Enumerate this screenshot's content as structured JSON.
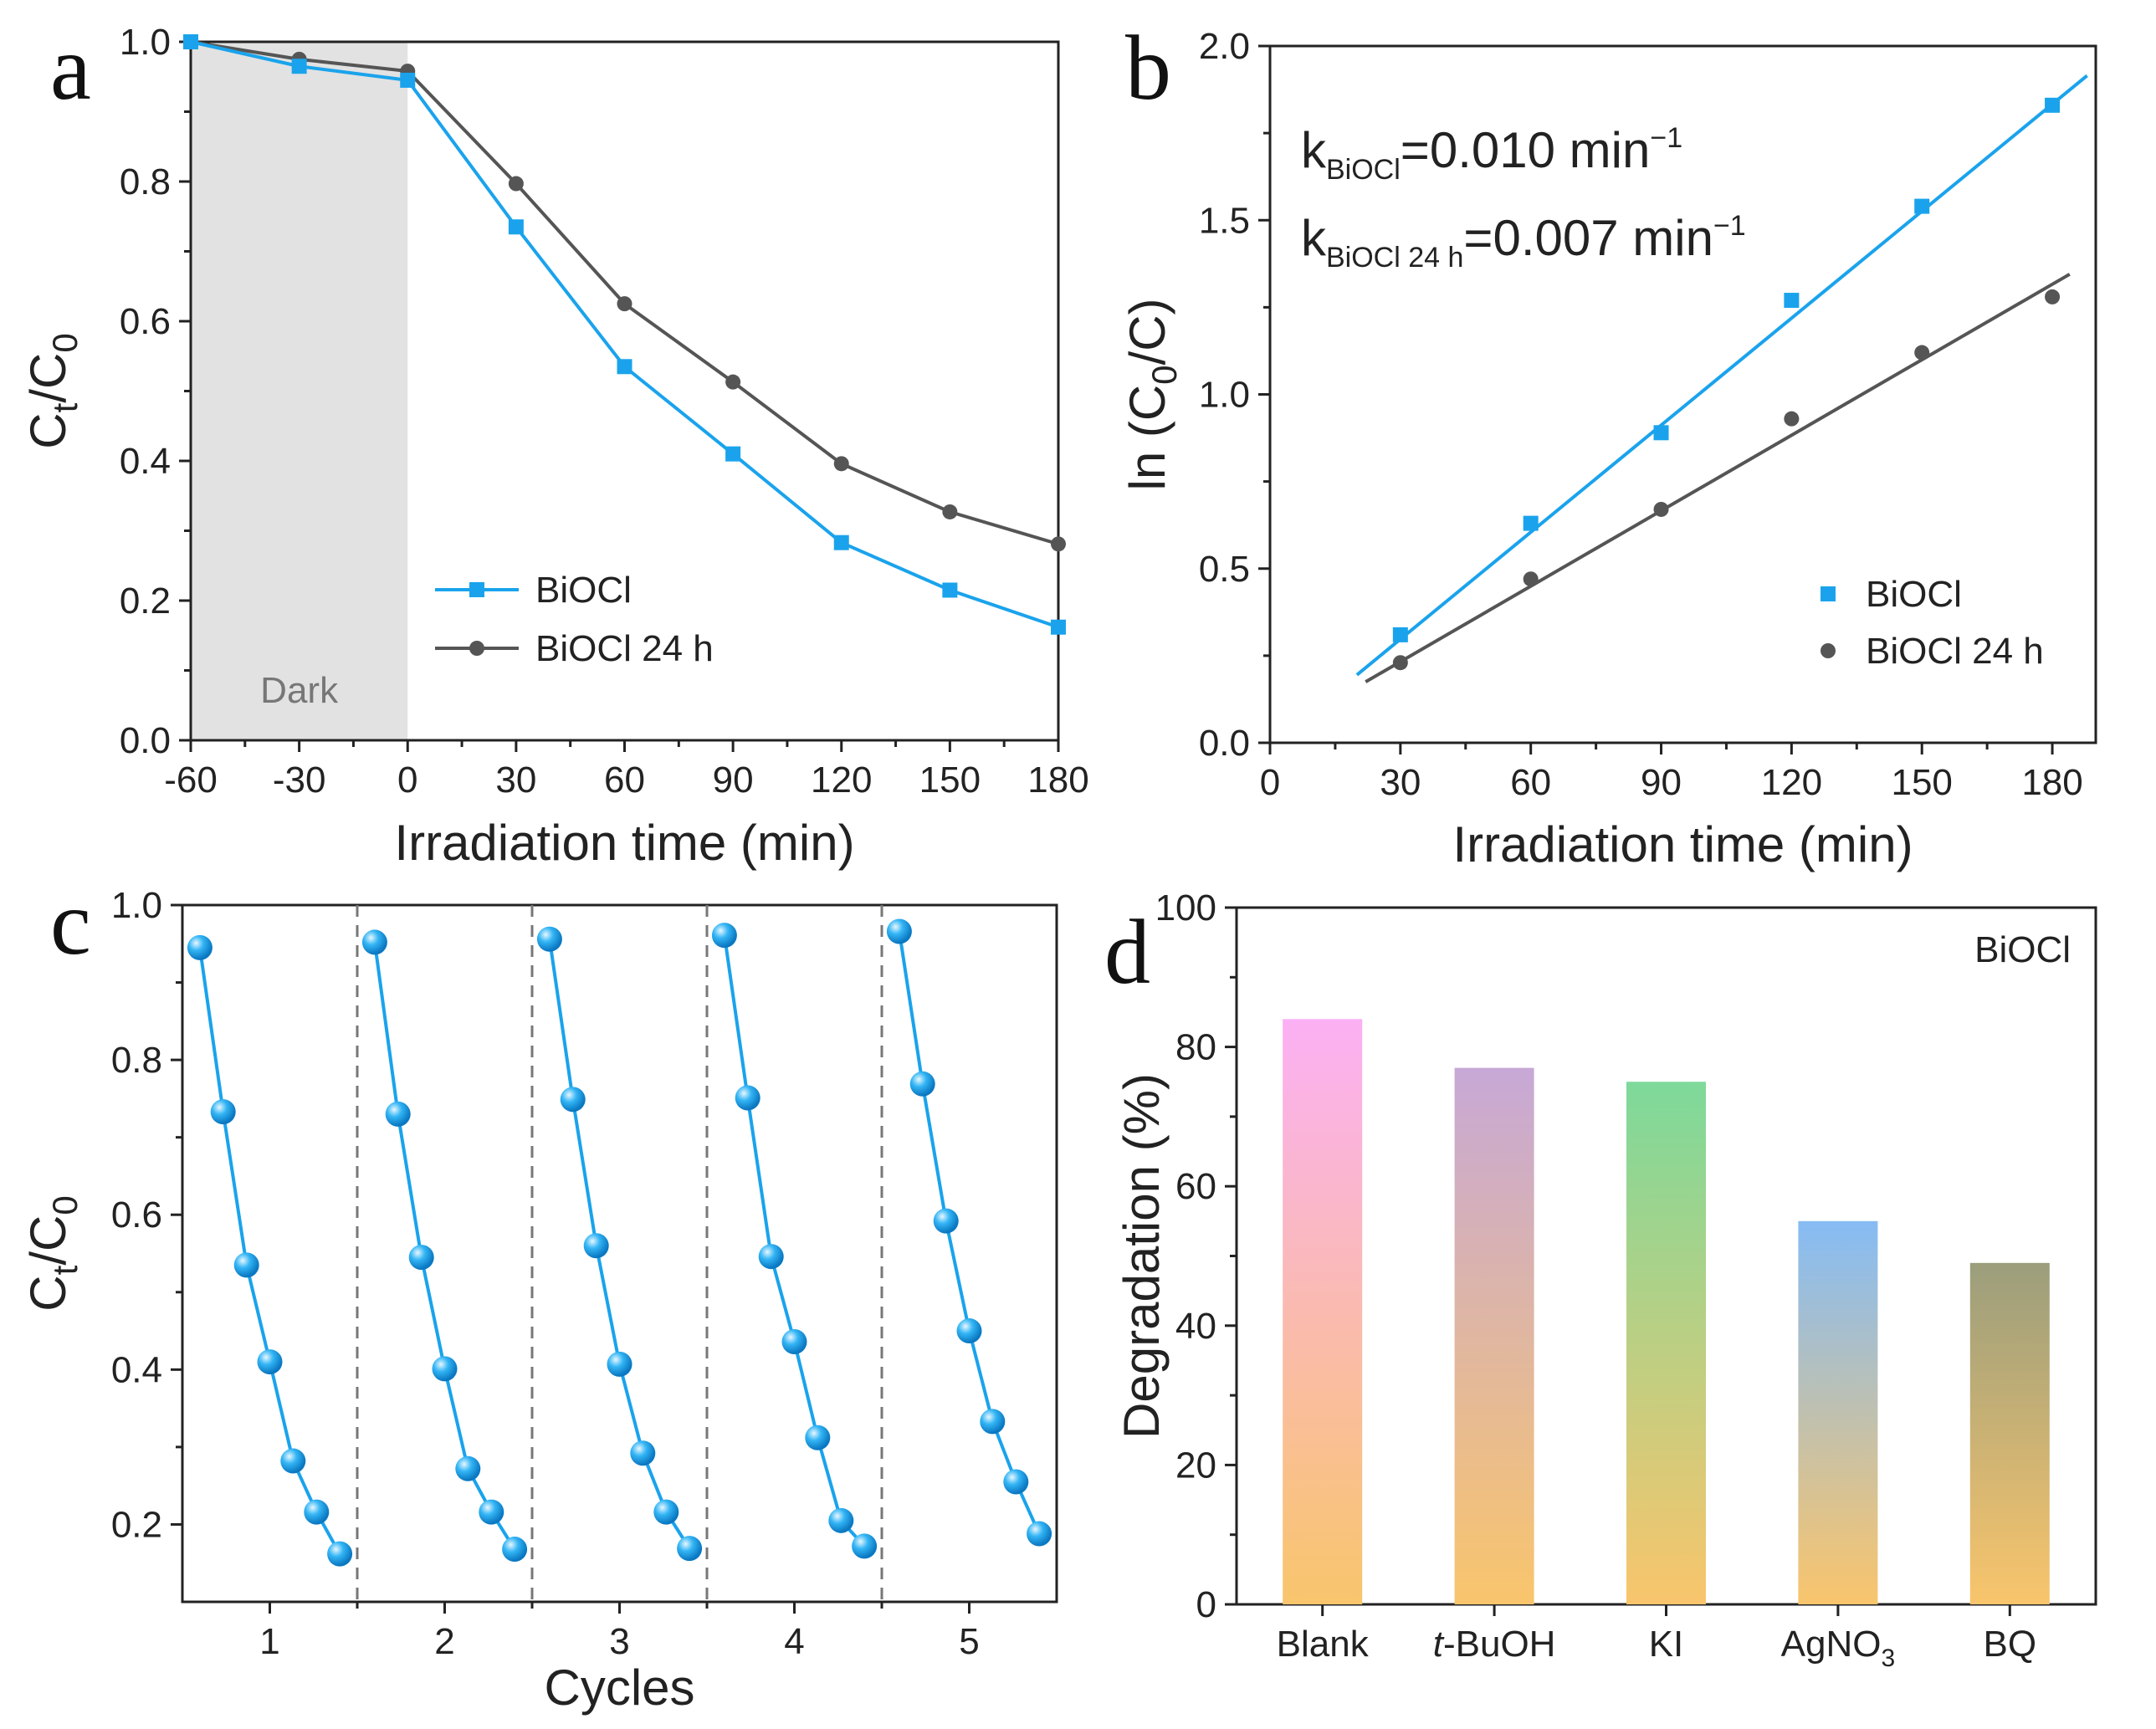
{
  "panel_letters": [
    "a",
    "b",
    "c",
    "d"
  ],
  "colors": {
    "biocl": "#1aa3ec",
    "biocl24": "#555555",
    "dark_region": "#e2e2e2",
    "axis": "#222222"
  },
  "chart_data": [
    {
      "panel": "a",
      "type": "line",
      "xlabel": "Irradiation time (min)",
      "ylabel_base": "C",
      "ylabel_sub1": "t",
      "ylabel_mid": "/C",
      "ylabel_sub2": "0",
      "xlim": [
        -60,
        180
      ],
      "ylim": [
        0,
        1.0
      ],
      "xticks": [
        -60,
        -30,
        0,
        30,
        60,
        90,
        120,
        150,
        180
      ],
      "yticks": [
        0.0,
        0.2,
        0.4,
        0.6,
        0.8,
        1.0
      ],
      "ytick_labels": [
        "0.0",
        "0.2",
        "0.4",
        "0.6",
        "0.8",
        "1.0"
      ],
      "shaded_region": {
        "x": [
          -60,
          0
        ],
        "label": "Dark"
      },
      "legend_position": "lower-center",
      "series": [
        {
          "name": "BiOCl",
          "marker": "square",
          "color": "#1aa3ec",
          "x": [
            -60,
            -30,
            0,
            30,
            60,
            90,
            120,
            150,
            180
          ],
          "y": [
            1.0,
            0.965,
            0.945,
            0.735,
            0.535,
            0.41,
            0.283,
            0.215,
            0.162
          ]
        },
        {
          "name": "BiOCl 24 h",
          "marker": "circle",
          "color": "#555555",
          "x": [
            -60,
            -30,
            0,
            30,
            60,
            90,
            120,
            150,
            180
          ],
          "y": [
            1.0,
            0.975,
            0.958,
            0.797,
            0.625,
            0.513,
            0.396,
            0.327,
            0.281
          ]
        }
      ]
    },
    {
      "panel": "b",
      "type": "scatter",
      "xlabel": "Irradiation time (min)",
      "ylabel_pre": "ln (C",
      "ylabel_sub": "0",
      "ylabel_post": "/C)",
      "xlim": [
        0,
        190
      ],
      "ylim": [
        0,
        2.0
      ],
      "xticks": [
        0,
        30,
        60,
        90,
        120,
        150,
        180
      ],
      "yticks": [
        0.0,
        0.5,
        1.0,
        1.5,
        2.0
      ],
      "ytick_labels": [
        "0.0",
        "0.5",
        "1.0",
        "1.5",
        "2.0"
      ],
      "legend_position": "lower-right",
      "annotations": [
        {
          "pre": "k",
          "sub": "BiOCl",
          "post": "=0.010 min",
          "sup": "−1"
        },
        {
          "pre": "k",
          "sub": "BiOCl 24 h",
          "post": "=0.007 min",
          "sup": "−1"
        }
      ],
      "series": [
        {
          "name": "BiOCl",
          "marker": "square",
          "color": "#1aa3ec",
          "x": [
            30,
            60,
            90,
            120,
            150,
            180
          ],
          "y": [
            0.31,
            0.63,
            0.89,
            1.27,
            1.54,
            1.83
          ],
          "fit": {
            "x": [
              20,
              188
            ],
            "y": [
              0.195,
              1.915
            ]
          }
        },
        {
          "name": "BiOCl 24 h",
          "marker": "circle",
          "color": "#555555",
          "x": [
            30,
            60,
            90,
            120,
            150,
            180
          ],
          "y": [
            0.23,
            0.47,
            0.67,
            0.93,
            1.12,
            1.28
          ],
          "fit": {
            "x": [
              22,
              184
            ],
            "y": [
              0.175,
              1.345
            ]
          }
        }
      ]
    },
    {
      "panel": "c",
      "type": "line",
      "xlabel": "Cycles",
      "ylabel_base": "C",
      "ylabel_sub1": "t",
      "ylabel_mid": "/C",
      "ylabel_sub2": "0",
      "xlim": [
        0.5,
        5.5
      ],
      "ylim": [
        0.1,
        1.0
      ],
      "xticks": [
        1,
        2,
        3,
        4,
        5
      ],
      "yticks": [
        0.2,
        0.4,
        0.6,
        0.8,
        1.0
      ],
      "ytick_labels": [
        "0.2",
        "0.4",
        "0.6",
        "0.8",
        "1.0"
      ],
      "separators": [
        1.5,
        2.5,
        3.5,
        4.5
      ],
      "series": [
        {
          "name": "1",
          "color": "#1aa3ec",
          "x": [
            0.6,
            0.733,
            0.867,
            1.0,
            1.133,
            1.267,
            1.4
          ],
          "y": [
            0.945,
            0.733,
            0.535,
            0.41,
            0.282,
            0.216,
            0.162
          ]
        },
        {
          "name": "2",
          "color": "#1aa3ec",
          "x": [
            1.6,
            1.733,
            1.867,
            2.0,
            2.133,
            2.267,
            2.4
          ],
          "y": [
            0.952,
            0.73,
            0.545,
            0.401,
            0.272,
            0.216,
            0.168
          ]
        },
        {
          "name": "3",
          "color": "#1aa3ec",
          "x": [
            2.6,
            2.733,
            2.867,
            3.0,
            3.133,
            3.267,
            3.4
          ],
          "y": [
            0.956,
            0.749,
            0.56,
            0.407,
            0.292,
            0.216,
            0.169
          ]
        },
        {
          "name": "4",
          "color": "#1aa3ec",
          "x": [
            3.6,
            3.733,
            3.867,
            4.0,
            4.133,
            4.267,
            4.4
          ],
          "y": [
            0.961,
            0.751,
            0.546,
            0.436,
            0.312,
            0.205,
            0.172
          ]
        },
        {
          "name": "5",
          "color": "#1aa3ec",
          "x": [
            4.6,
            4.733,
            4.867,
            5.0,
            5.133,
            5.267,
            5.4
          ],
          "y": [
            0.966,
            0.769,
            0.592,
            0.45,
            0.333,
            0.255,
            0.188
          ]
        }
      ]
    },
    {
      "panel": "d",
      "type": "bar",
      "ylabel": "Degradation (%)",
      "ylim": [
        0,
        100
      ],
      "yticks": [
        0,
        20,
        40,
        60,
        80,
        100
      ],
      "annotation": "BiOCl",
      "categories": [
        {
          "pre": "",
          "italic": "",
          "main": "Blank",
          "sub": ""
        },
        {
          "pre": "",
          "italic": "t",
          "main": "-BuOH",
          "sub": ""
        },
        {
          "pre": "",
          "italic": "",
          "main": "KI",
          "sub": ""
        },
        {
          "pre": "",
          "italic": "",
          "main": "AgNO",
          "sub": "3"
        },
        {
          "pre": "",
          "italic": "",
          "main": "BQ",
          "sub": ""
        }
      ],
      "values": [
        84,
        77,
        75,
        55,
        49
      ],
      "bar_top_colors": [
        "#fbb0f4",
        "#c7a8d6",
        "#7dd99a",
        "#86bcf4",
        "#9b9e7c"
      ],
      "bar_bottom_color": "#f9c56c"
    }
  ]
}
